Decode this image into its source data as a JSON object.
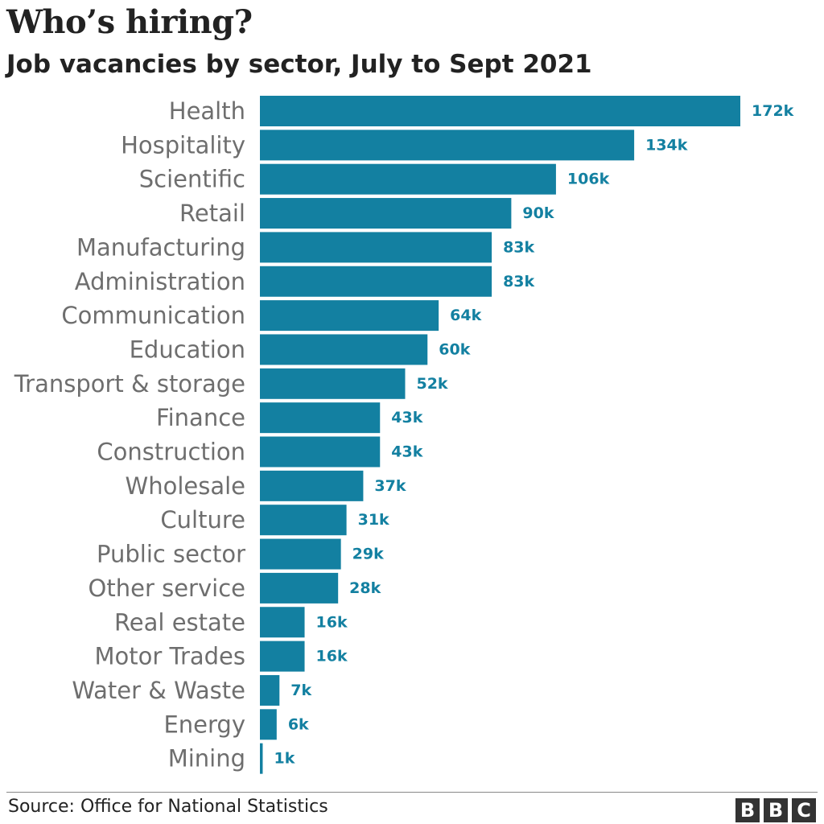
{
  "title": "Who’s hiring?",
  "subtitle": "Job vacancies by sector, July to Sept 2021",
  "source": "Source: Office for National Statistics",
  "logo": {
    "letters": [
      "B",
      "B",
      "C"
    ]
  },
  "colors": {
    "bar": "#1380a1",
    "value_label": "#1380a1",
    "category_label": "#6e6e6e",
    "logo_bg": "#333333"
  },
  "chart_data": {
    "type": "bar",
    "orientation": "horizontal",
    "categories": [
      "Health",
      "Hospitality",
      "Scientific",
      "Retail",
      "Manufacturing",
      "Administration",
      "Communication",
      "Education",
      "Transport & storage",
      "Finance",
      "Construction",
      "Wholesale",
      "Culture",
      "Public sector",
      "Other service",
      "Real estate",
      "Motor Trades",
      "Water & Waste",
      "Energy",
      "Mining"
    ],
    "values": [
      172,
      134,
      106,
      90,
      83,
      83,
      64,
      60,
      52,
      43,
      43,
      37,
      31,
      29,
      28,
      16,
      16,
      7,
      6,
      1
    ],
    "value_labels": [
      "172k",
      "134k",
      "106k",
      "90k",
      "83k",
      "83k",
      "64k",
      "60k",
      "52k",
      "43k",
      "43k",
      "37k",
      "31k",
      "29k",
      "28k",
      "16k",
      "16k",
      "7k",
      "6k",
      "1k"
    ],
    "xlim": [
      0,
      172
    ],
    "grid": false,
    "legend": "none"
  }
}
